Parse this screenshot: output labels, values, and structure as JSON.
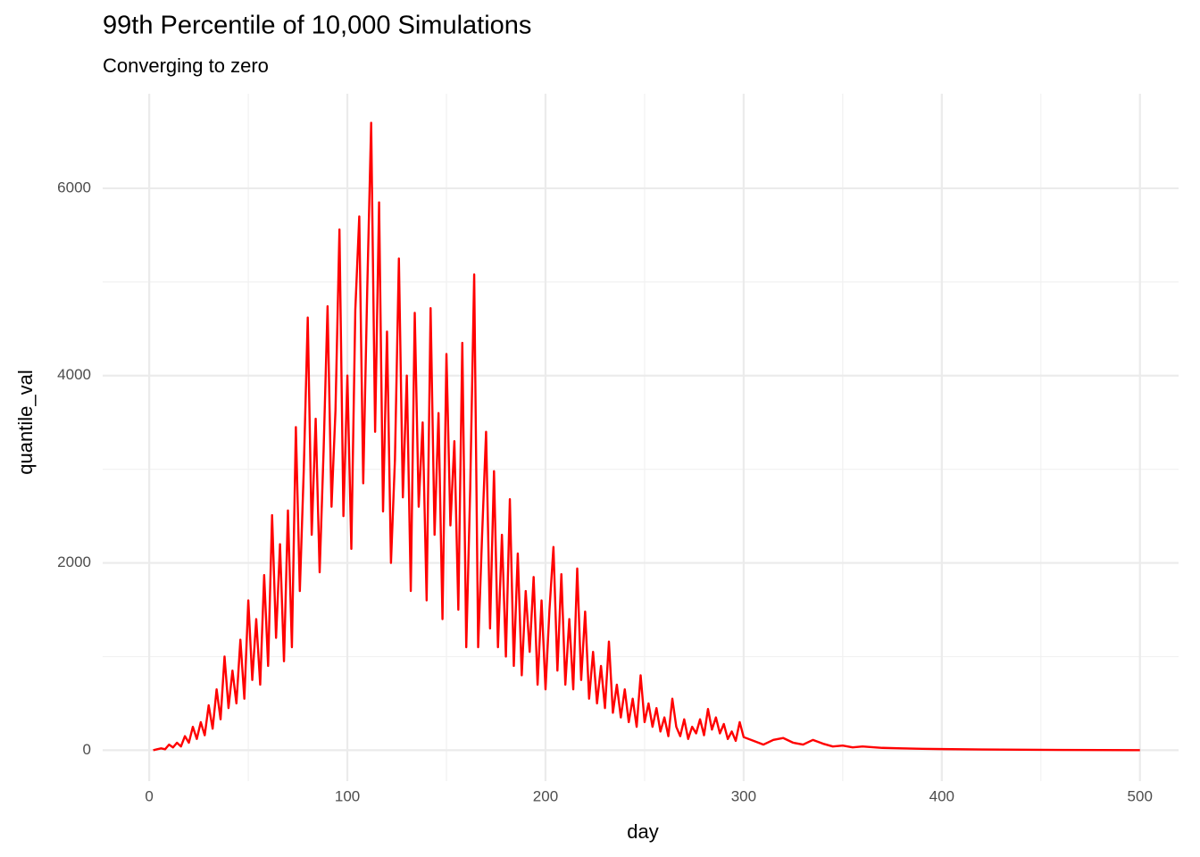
{
  "chart_data": {
    "type": "line",
    "title": "99th Percentile of 10,000 Simulations",
    "subtitle": "Converging to zero",
    "x_label": "day",
    "y_label": "quantile_val",
    "xlim": [
      -23.5,
      519.5
    ],
    "ylim": [
      -330,
      7010
    ],
    "xticks": [
      0,
      100,
      200,
      300,
      400,
      500
    ],
    "yticks": [
      0,
      2000,
      4000,
      6000
    ],
    "x_minor_ticks": [
      50,
      150,
      250,
      350,
      450
    ],
    "y_minor_ticks": [
      1000,
      3000,
      5000
    ],
    "grid": true,
    "series": [
      {
        "color": "#ff0000",
        "x": [
          2,
          4,
          6,
          8,
          10,
          12,
          14,
          16,
          18,
          20,
          22,
          24,
          26,
          28,
          30,
          32,
          34,
          36,
          38,
          40,
          42,
          44,
          46,
          48,
          50,
          52,
          54,
          56,
          58,
          60,
          62,
          64,
          66,
          68,
          70,
          72,
          74,
          76,
          78,
          80,
          82,
          84,
          86,
          88,
          90,
          92,
          94,
          96,
          98,
          100,
          102,
          104,
          106,
          108,
          110,
          112,
          114,
          116,
          118,
          120,
          122,
          124,
          126,
          128,
          130,
          132,
          134,
          136,
          138,
          140,
          142,
          144,
          146,
          148,
          150,
          152,
          154,
          156,
          158,
          160,
          162,
          164,
          166,
          168,
          170,
          172,
          174,
          176,
          178,
          180,
          182,
          184,
          186,
          188,
          190,
          192,
          194,
          196,
          198,
          200,
          202,
          204,
          206,
          208,
          210,
          212,
          214,
          216,
          218,
          220,
          222,
          224,
          226,
          228,
          230,
          232,
          234,
          236,
          238,
          240,
          242,
          244,
          246,
          248,
          250,
          252,
          254,
          256,
          258,
          260,
          262,
          264,
          266,
          268,
          270,
          272,
          274,
          276,
          278,
          280,
          282,
          284,
          286,
          288,
          290,
          292,
          294,
          296,
          298,
          300,
          305,
          310,
          315,
          320,
          325,
          330,
          335,
          340,
          345,
          350,
          355,
          360,
          370,
          380,
          390,
          400,
          420,
          440,
          460,
          480,
          500
        ],
        "values": [
          0,
          10,
          20,
          10,
          60,
          30,
          80,
          40,
          150,
          80,
          250,
          120,
          300,
          160,
          480,
          230,
          650,
          330,
          1000,
          450,
          850,
          500,
          1180,
          550,
          1600,
          750,
          1400,
          700,
          1870,
          900,
          2510,
          1200,
          2200,
          950,
          2560,
          1100,
          3450,
          1700,
          3000,
          4620,
          2300,
          3540,
          1900,
          3200,
          4740,
          2600,
          3630,
          5560,
          2500,
          4000,
          2150,
          4700,
          5700,
          2850,
          4900,
          6700,
          3400,
          5850,
          2550,
          4470,
          2000,
          3100,
          5250,
          2700,
          4000,
          1700,
          4670,
          2600,
          3500,
          1600,
          4720,
          2300,
          3600,
          1400,
          4230,
          2400,
          3300,
          1500,
          4350,
          1100,
          2800,
          5080,
          1100,
          2300,
          3400,
          1300,
          2980,
          1100,
          2300,
          1000,
          2680,
          900,
          2100,
          800,
          1700,
          1050,
          1850,
          700,
          1600,
          650,
          1500,
          2170,
          850,
          1880,
          700,
          1400,
          650,
          1940,
          750,
          1480,
          550,
          1050,
          500,
          900,
          450,
          1160,
          400,
          700,
          350,
          650,
          300,
          550,
          250,
          800,
          300,
          500,
          250,
          450,
          200,
          350,
          150,
          550,
          250,
          150,
          330,
          120,
          250,
          180,
          330,
          160,
          440,
          220,
          350,
          180,
          280,
          120,
          200,
          100,
          300,
          140,
          100,
          60,
          110,
          130,
          80,
          60,
          110,
          70,
          40,
          50,
          30,
          40,
          25,
          20,
          15,
          12,
          8,
          5,
          3,
          2,
          1
        ]
      }
    ]
  }
}
